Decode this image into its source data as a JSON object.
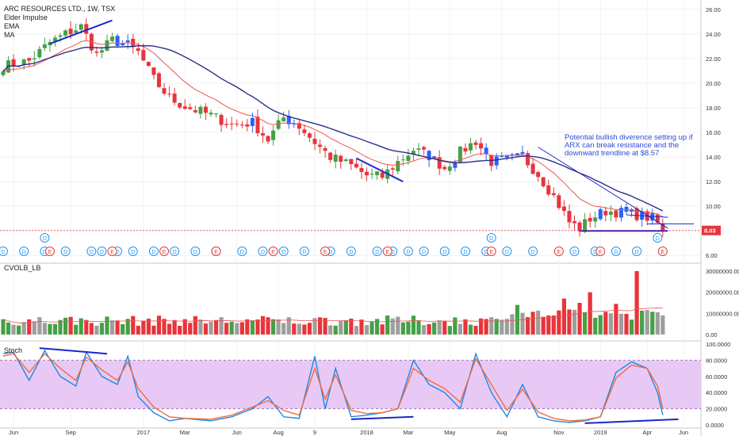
{
  "colors": {
    "up": "#45a046",
    "down": "#e8343a",
    "neutral": "#2962ff",
    "ema": "#ef5350",
    "ma": "#2b2e8c",
    "trendline": "#1a27c9",
    "volume_neutral": "#9e9e9e",
    "stoch_k": "#1e88e5",
    "stoch_d": "#ef6c3b",
    "stoch_band": "#e8c9f5",
    "dividend": "#2196f3",
    "earnings": "#e53935",
    "last_price_bg": "#e8343a"
  },
  "chart_data": [
    {
      "type": "candlestick",
      "title": "ARC RESOURCES LTD., 1W, TSX",
      "series": [
        {
          "name": "ARC RESOURCES LTD., 1W, TSX",
          "kind": "ohlc"
        },
        {
          "name": "Elder Impulse"
        },
        {
          "name": "EMA"
        },
        {
          "name": "MA"
        }
      ],
      "ylim": [
        5.5,
        26.5
      ],
      "y_ticks": [
        "26.00",
        "24.00",
        "22.00",
        "20.00",
        "18.00",
        "16.00",
        "14.00",
        "12.00",
        "10.00",
        "8.00",
        "6.00"
      ],
      "last_price": "8.03",
      "x_ticks": [
        "Jun",
        "Sep",
        "2017",
        "Mar",
        "Jun",
        "Aug",
        "9",
        "2018",
        "Mar",
        "May",
        "Aug",
        "Nov",
        "2019",
        "Apr",
        "Jun"
      ],
      "close_anchors": [
        [
          0,
          21.4
        ],
        [
          5,
          21.8
        ],
        [
          9,
          23.3
        ],
        [
          12,
          24.0
        ],
        [
          15,
          24.6
        ],
        [
          18,
          22.3
        ],
        [
          21,
          23.5
        ],
        [
          24,
          23.1
        ],
        [
          26,
          22.5
        ],
        [
          29,
          20.3
        ],
        [
          32,
          18.8
        ],
        [
          35,
          18.1
        ],
        [
          40,
          17.4
        ],
        [
          44,
          16.6
        ],
        [
          48,
          16.8
        ],
        [
          51,
          15.4
        ],
        [
          54,
          17.2
        ],
        [
          57,
          16.5
        ],
        [
          60,
          15.2
        ],
        [
          63,
          14.0
        ],
        [
          67,
          13.3
        ],
        [
          70,
          12.5
        ],
        [
          73,
          12.4
        ],
        [
          76,
          13.6
        ],
        [
          79,
          14.6
        ],
        [
          82,
          14.1
        ],
        [
          85,
          13.1
        ],
        [
          88,
          14.4
        ],
        [
          91,
          15.3
        ],
        [
          94,
          13.6
        ],
        [
          97,
          13.8
        ],
        [
          100,
          14.0
        ],
        [
          103,
          12.6
        ],
        [
          106,
          10.8
        ],
        [
          109,
          8.7
        ],
        [
          111,
          8.2
        ],
        [
          113,
          9.0
        ],
        [
          116,
          9.6
        ],
        [
          119,
          9.5
        ],
        [
          122,
          9.3
        ],
        [
          125,
          9.0
        ],
        [
          126,
          8.6
        ],
        [
          127,
          8.03
        ]
      ],
      "events": {
        "dividends": [
          0,
          4,
          8,
          12,
          17,
          19,
          22,
          25,
          29,
          33,
          37,
          41,
          46,
          50,
          54,
          58,
          63,
          67,
          72,
          75,
          78,
          81,
          85,
          89,
          93,
          97,
          102,
          110,
          114,
          118,
          122
        ],
        "dividends_raised": [
          8,
          94,
          126
        ],
        "earnings": [
          9,
          21,
          31,
          41,
          52,
          62,
          74,
          94,
          107,
          115,
          127
        ]
      },
      "annotations": [
        {
          "text": "Potential bullish diverence setting up if ARX can break resistance and the downward trendline at $8.57"
        }
      ]
    },
    {
      "type": "bar",
      "title": "CVOLB_LB",
      "ylim": [
        0,
        30000000
      ],
      "y_ticks": [
        "30000000.00",
        "20000000.00",
        "10000000.00",
        "0.00"
      ],
      "spikes": [
        [
          113,
          20000000
        ],
        [
          122,
          30000000
        ],
        [
          99,
          14000000
        ],
        [
          108,
          17000000
        ],
        [
          118,
          14500000
        ],
        [
          111,
          15000000
        ]
      ]
    },
    {
      "type": "line",
      "title": "Stoch",
      "ylim": [
        -2,
        102
      ],
      "y_ticks": [
        "100.0000",
        "80.0000",
        "60.0000",
        "40.0000",
        "20.0000",
        "0.0000"
      ],
      "band": [
        20,
        80
      ],
      "k_anchors": [
        [
          0,
          88
        ],
        [
          2,
          90
        ],
        [
          5,
          55
        ],
        [
          8,
          92
        ],
        [
          11,
          60
        ],
        [
          14,
          48
        ],
        [
          16,
          90
        ],
        [
          19,
          60
        ],
        [
          22,
          50
        ],
        [
          24,
          85
        ],
        [
          26,
          35
        ],
        [
          29,
          15
        ],
        [
          32,
          5
        ],
        [
          35,
          8
        ],
        [
          40,
          5
        ],
        [
          44,
          10
        ],
        [
          48,
          20
        ],
        [
          51,
          35
        ],
        [
          54,
          10
        ],
        [
          57,
          8
        ],
        [
          60,
          85
        ],
        [
          62,
          20
        ],
        [
          64,
          70
        ],
        [
          67,
          10
        ],
        [
          70,
          12
        ],
        [
          73,
          15
        ],
        [
          76,
          20
        ],
        [
          79,
          80
        ],
        [
          82,
          50
        ],
        [
          85,
          40
        ],
        [
          88,
          20
        ],
        [
          91,
          88
        ],
        [
          94,
          40
        ],
        [
          97,
          10
        ],
        [
          100,
          50
        ],
        [
          103,
          10
        ],
        [
          106,
          5
        ],
        [
          109,
          3
        ],
        [
          112,
          5
        ],
        [
          115,
          10
        ],
        [
          118,
          65
        ],
        [
          121,
          78
        ],
        [
          124,
          70
        ],
        [
          126,
          40
        ],
        [
          127,
          12
        ]
      ],
      "d_anchors": [
        [
          0,
          85
        ],
        [
          2,
          88
        ],
        [
          5,
          65
        ],
        [
          8,
          88
        ],
        [
          11,
          70
        ],
        [
          14,
          55
        ],
        [
          16,
          84
        ],
        [
          19,
          68
        ],
        [
          22,
          55
        ],
        [
          24,
          78
        ],
        [
          26,
          45
        ],
        [
          29,
          22
        ],
        [
          32,
          10
        ],
        [
          35,
          8
        ],
        [
          40,
          7
        ],
        [
          44,
          12
        ],
        [
          48,
          22
        ],
        [
          51,
          30
        ],
        [
          54,
          18
        ],
        [
          57,
          12
        ],
        [
          60,
          70
        ],
        [
          62,
          32
        ],
        [
          64,
          62
        ],
        [
          67,
          18
        ],
        [
          70,
          14
        ],
        [
          73,
          15
        ],
        [
          76,
          20
        ],
        [
          79,
          70
        ],
        [
          82,
          55
        ],
        [
          85,
          45
        ],
        [
          88,
          28
        ],
        [
          91,
          82
        ],
        [
          94,
          50
        ],
        [
          97,
          18
        ],
        [
          100,
          44
        ],
        [
          103,
          16
        ],
        [
          106,
          8
        ],
        [
          109,
          5
        ],
        [
          112,
          6
        ],
        [
          115,
          10
        ],
        [
          118,
          58
        ],
        [
          121,
          74
        ],
        [
          124,
          70
        ],
        [
          126,
          48
        ],
        [
          127,
          20
        ]
      ]
    }
  ]
}
